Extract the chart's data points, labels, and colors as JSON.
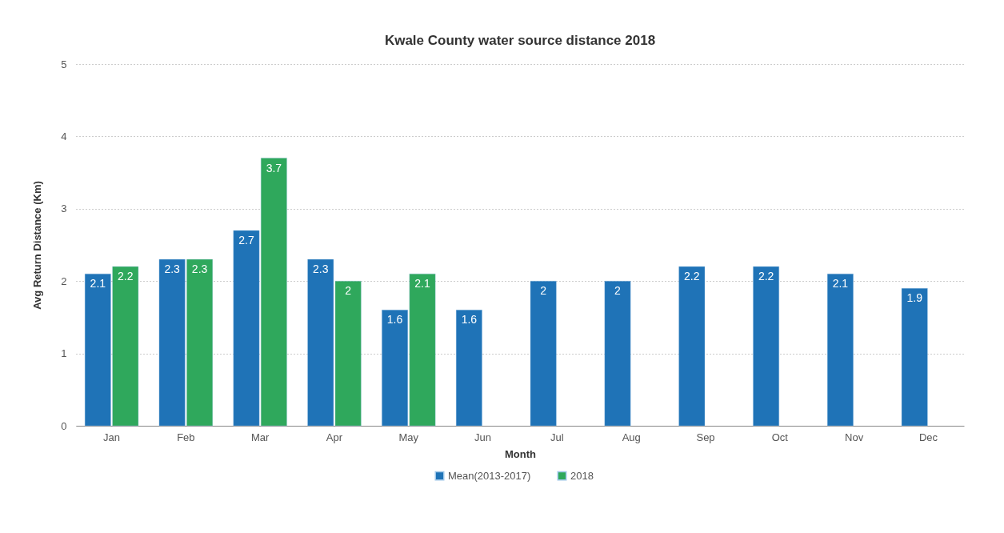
{
  "chart_data": {
    "type": "bar",
    "title": "Kwale County water source distance 2018",
    "xlabel": "Month",
    "ylabel": "Avg Return Distance (Km)",
    "categories": [
      "Jan",
      "Feb",
      "Mar",
      "Apr",
      "May",
      "Jun",
      "Jul",
      "Aug",
      "Sep",
      "Oct",
      "Nov",
      "Dec"
    ],
    "series": [
      {
        "name": "Mean(2013-2017)",
        "color": "#1f73b7",
        "values": [
          2.1,
          2.3,
          2.7,
          2.3,
          1.6,
          1.6,
          2,
          2,
          2.2,
          2.2,
          2.1,
          1.9
        ]
      },
      {
        "name": "2018",
        "color": "#2fa85c",
        "values": [
          2.2,
          2.3,
          3.7,
          2,
          2.1,
          null,
          null,
          null,
          null,
          null,
          null,
          null
        ]
      }
    ],
    "ylim": [
      0,
      5
    ],
    "yticks": [
      0,
      1,
      2,
      3,
      4,
      5
    ],
    "grid": "y",
    "legend": "bottom",
    "data_labels": true
  }
}
